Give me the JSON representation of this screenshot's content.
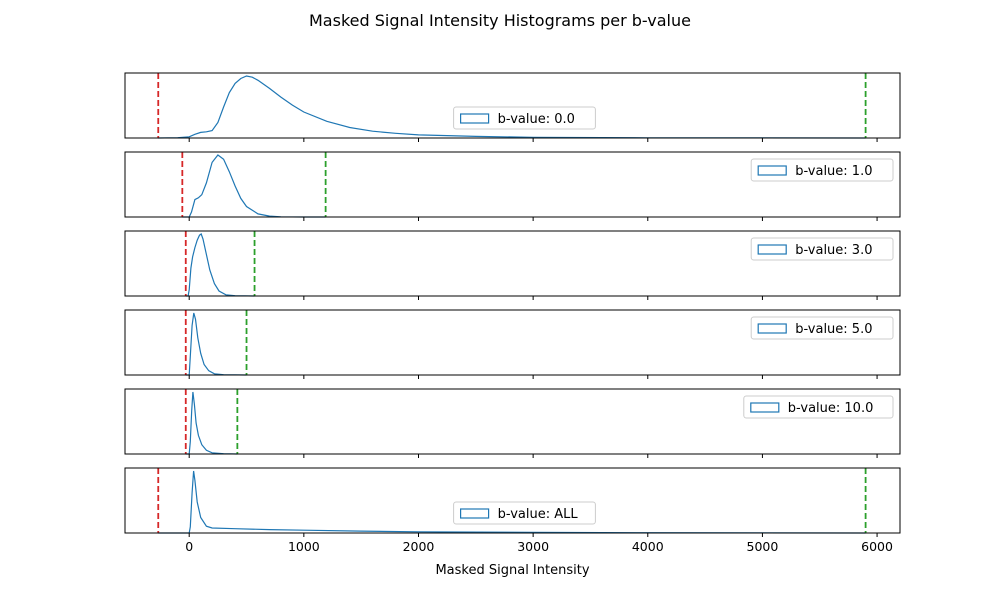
{
  "chart_data": {
    "type": "line",
    "title": "Masked Signal Intensity Histograms per b-value",
    "xlabel": "Masked Signal Intensity",
    "ylabel": "",
    "xlim": [
      -560,
      6200
    ],
    "x_ticks": [
      0,
      1000,
      2000,
      3000,
      4000,
      5000,
      6000
    ],
    "x_tick_labels": [
      "0",
      "1000",
      "2000",
      "3000",
      "4000",
      "5000",
      "6000"
    ],
    "grid": false,
    "line_color": "#1f77b4",
    "lower_marker_color": "#d62728",
    "upper_marker_color": "#2ca02c",
    "panels": [
      {
        "legend": "b-value: 0.0",
        "legend_loc": "lower-center",
        "lower_threshold": -270,
        "upper_threshold": 5900,
        "curve": [
          [
            -270,
            0
          ],
          [
            -100,
            0.005
          ],
          [
            0,
            0.02
          ],
          [
            50,
            0.06
          ],
          [
            100,
            0.09
          ],
          [
            150,
            0.1
          ],
          [
            200,
            0.12
          ],
          [
            250,
            0.25
          ],
          [
            300,
            0.5
          ],
          [
            350,
            0.73
          ],
          [
            400,
            0.88
          ],
          [
            450,
            0.96
          ],
          [
            500,
            1.0
          ],
          [
            550,
            0.98
          ],
          [
            600,
            0.93
          ],
          [
            700,
            0.8
          ],
          [
            800,
            0.66
          ],
          [
            900,
            0.53
          ],
          [
            1000,
            0.42
          ],
          [
            1200,
            0.27
          ],
          [
            1400,
            0.17
          ],
          [
            1600,
            0.11
          ],
          [
            1800,
            0.075
          ],
          [
            2000,
            0.05
          ],
          [
            2500,
            0.025
          ],
          [
            3000,
            0.012
          ],
          [
            4000,
            0.004
          ],
          [
            5000,
            0.001
          ],
          [
            5900,
            0
          ]
        ]
      },
      {
        "legend": "b-value: 1.0",
        "legend_loc": "upper-right",
        "lower_threshold": -60,
        "upper_threshold": 1190,
        "curve": [
          [
            -60,
            0
          ],
          [
            0,
            0.0
          ],
          [
            20,
            0.08
          ],
          [
            50,
            0.28
          ],
          [
            80,
            0.31
          ],
          [
            110,
            0.36
          ],
          [
            150,
            0.55
          ],
          [
            200,
            0.88
          ],
          [
            250,
            1.0
          ],
          [
            300,
            0.93
          ],
          [
            350,
            0.73
          ],
          [
            400,
            0.5
          ],
          [
            450,
            0.3
          ],
          [
            500,
            0.17
          ],
          [
            600,
            0.05
          ],
          [
            700,
            0.015
          ],
          [
            800,
            0.003
          ],
          [
            1000,
            0.0
          ],
          [
            1190,
            0
          ]
        ]
      },
      {
        "legend": "b-value: 3.0",
        "legend_loc": "upper-right",
        "lower_threshold": -30,
        "upper_threshold": 570,
        "curve": [
          [
            -30,
            0
          ],
          [
            -10,
            0
          ],
          [
            0,
            0.1
          ],
          [
            15,
            0.45
          ],
          [
            30,
            0.63
          ],
          [
            50,
            0.78
          ],
          [
            70,
            0.9
          ],
          [
            90,
            0.98
          ],
          [
            105,
            1.0
          ],
          [
            120,
            0.92
          ],
          [
            150,
            0.67
          ],
          [
            180,
            0.42
          ],
          [
            220,
            0.2
          ],
          [
            260,
            0.08
          ],
          [
            320,
            0.02
          ],
          [
            400,
            0.005
          ],
          [
            570,
            0
          ]
        ]
      },
      {
        "legend": "b-value: 5.0",
        "legend_loc": "upper-right",
        "lower_threshold": -30,
        "upper_threshold": 500,
        "curve": [
          [
            -30,
            0
          ],
          [
            0,
            0
          ],
          [
            10,
            0.3
          ],
          [
            25,
            0.8
          ],
          [
            40,
            1.0
          ],
          [
            55,
            0.9
          ],
          [
            75,
            0.6
          ],
          [
            100,
            0.35
          ],
          [
            130,
            0.17
          ],
          [
            170,
            0.07
          ],
          [
            220,
            0.02
          ],
          [
            300,
            0.005
          ],
          [
            500,
            0
          ]
        ]
      },
      {
        "legend": "b-value: 10.0",
        "legend_loc": "upper-right",
        "lower_threshold": -30,
        "upper_threshold": 420,
        "curve": [
          [
            -30,
            0
          ],
          [
            0,
            0
          ],
          [
            10,
            0.2
          ],
          [
            22,
            0.7
          ],
          [
            32,
            1.0
          ],
          [
            45,
            0.8
          ],
          [
            60,
            0.5
          ],
          [
            80,
            0.3
          ],
          [
            110,
            0.15
          ],
          [
            150,
            0.06
          ],
          [
            200,
            0.02
          ],
          [
            300,
            0.005
          ],
          [
            420,
            0
          ]
        ]
      },
      {
        "legend": "b-value: ALL",
        "legend_loc": "lower-center",
        "lower_threshold": -270,
        "upper_threshold": 5900,
        "curve": [
          [
            -270,
            0
          ],
          [
            0,
            0
          ],
          [
            10,
            0.1
          ],
          [
            25,
            0.65
          ],
          [
            38,
            1.0
          ],
          [
            50,
            0.85
          ],
          [
            70,
            0.5
          ],
          [
            100,
            0.25
          ],
          [
            150,
            0.11
          ],
          [
            200,
            0.08
          ],
          [
            400,
            0.07
          ],
          [
            700,
            0.055
          ],
          [
            1000,
            0.045
          ],
          [
            1500,
            0.03
          ],
          [
            2000,
            0.02
          ],
          [
            3000,
            0.01
          ],
          [
            4000,
            0.005
          ],
          [
            5000,
            0.002
          ],
          [
            5900,
            0
          ]
        ]
      }
    ]
  }
}
